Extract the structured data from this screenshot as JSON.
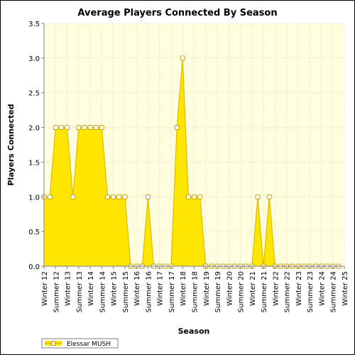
{
  "chart_data": {
    "type": "area",
    "title": "Average Players Connected By Season",
    "xlabel": "Season",
    "ylabel": "Players Connected",
    "ylim": [
      0,
      3.5
    ],
    "yticks": [
      "0.0",
      "0.5",
      "1.0",
      "1.5",
      "2.0",
      "2.5",
      "3.0",
      "3.5"
    ],
    "ytick_values": [
      0,
      0.5,
      1.0,
      1.5,
      2.0,
      2.5,
      3.0,
      3.5
    ],
    "x_tick_labels": [
      "Winter 12",
      "Summer 12",
      "Winter 13",
      "Summer 13",
      "Winter 14",
      "Summer 14",
      "Winter 15",
      "Summer 15",
      "Winter 16",
      "Summer 16",
      "Winter 17",
      "Summer 17",
      "Winter 18",
      "Summer 18",
      "Winter 19",
      "Summer 19",
      "Winter 20",
      "Summer 20",
      "Winter 21",
      "Summer 21",
      "Winter 22",
      "Summer 22",
      "Winter 23",
      "Summer 23",
      "Winter 24",
      "Summer 24",
      "Winter 25"
    ],
    "x_range": [
      0,
      52
    ],
    "grid": true,
    "legend_position": "bottom-left",
    "series": [
      {
        "name": "Elessar MUSH",
        "color": "#FFE600",
        "line_color": "#E6B800",
        "x": [
          0,
          1,
          2,
          3,
          4,
          5,
          6,
          7,
          8,
          9,
          10,
          11,
          12,
          13,
          14,
          15,
          16,
          17,
          18,
          19,
          20,
          21,
          22,
          23,
          24,
          25,
          26,
          27,
          28,
          29,
          30,
          31,
          32,
          33,
          34,
          35,
          36,
          37,
          38,
          39,
          40,
          41,
          42,
          43,
          44,
          45,
          46,
          47,
          48,
          49,
          50,
          51
        ],
        "values": [
          1,
          1,
          2,
          2,
          2,
          1,
          2,
          2,
          2,
          2,
          2,
          1,
          1,
          1,
          1,
          0,
          0,
          0,
          1,
          0,
          0,
          0,
          0,
          2,
          3,
          1,
          1,
          1,
          0,
          0,
          0,
          0,
          0,
          0,
          0,
          0,
          0,
          1,
          0,
          1,
          0,
          0,
          0,
          0,
          0,
          0,
          0,
          0,
          0,
          0,
          0,
          0
        ]
      }
    ]
  },
  "colors": {
    "plot_background": "#FFFFE0",
    "grid": "#C8C8A0",
    "area_fill": "#FFE600",
    "line": "#E6B800",
    "marker_fill": "#FFFFFF",
    "marker_stroke": "#C89600"
  }
}
